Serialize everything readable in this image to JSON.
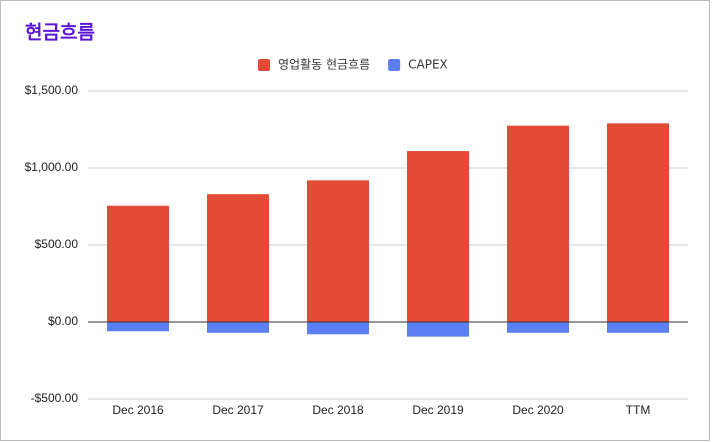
{
  "chart_data": {
    "type": "bar",
    "stacked": true,
    "title": "현금흐름",
    "categories": [
      "Dec 2016",
      "Dec 2017",
      "Dec 2018",
      "Dec 2019",
      "Dec 2020",
      "TTM"
    ],
    "series": [
      {
        "name": "영업활동 현금흐름",
        "color": "#e34b37",
        "values": [
          755,
          830,
          920,
          1110,
          1275,
          1290
        ]
      },
      {
        "name": "CAPEX",
        "color": "#5b7ff0",
        "values": [
          -60,
          -70,
          -80,
          -95,
          -70,
          -70
        ]
      }
    ],
    "ylim": [
      -500,
      1500
    ],
    "yticks": [
      {
        "value": -500,
        "label": "-$500.00"
      },
      {
        "value": 0,
        "label": "$0.00"
      },
      {
        "value": 500,
        "label": "$500.00"
      },
      {
        "value": 1000,
        "label": "$1,000.00"
      },
      {
        "value": 1500,
        "label": "$1,500.00"
      }
    ],
    "grid": true,
    "legend": "top"
  }
}
